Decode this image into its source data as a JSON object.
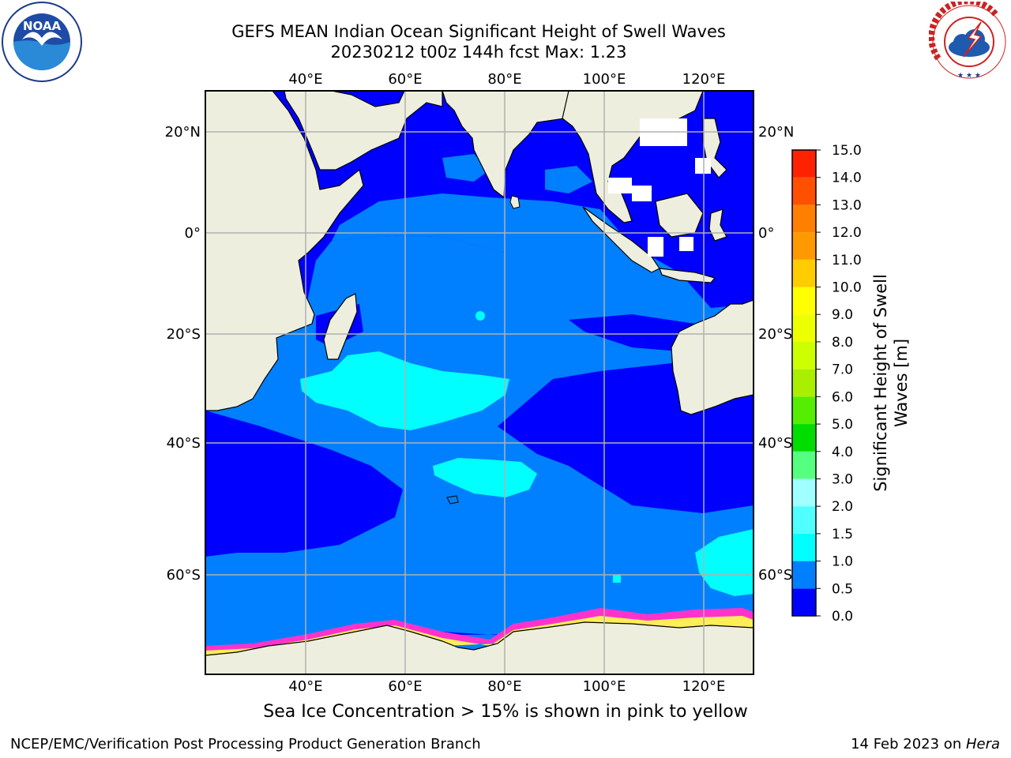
{
  "title": {
    "line1": "GEFS MEAN Indian Ocean Significant Height of Swell Waves",
    "line2": "20230212 t00z 144h fcst   Max: 1.23"
  },
  "map": {
    "lon_labels": [
      "40°E",
      "60°E",
      "80°E",
      "100°E",
      "120°E"
    ],
    "lat_labels": [
      "20°N",
      "0°",
      "20°S",
      "40°S",
      "60°S"
    ],
    "colors": {
      "land": "#eeeede",
      "class_0_0_5": "#0000ff",
      "class_0_5_1_0": "#0080ff",
      "class_1_0_1_5": "#00ffff",
      "sea_ice_pink": "#ff33cc",
      "sea_ice_yellow": "#ffee55",
      "grid": "#b0b0b0"
    }
  },
  "colorbar": {
    "title_line1": "Significant Height of Swell",
    "title_line2": "Waves [m]",
    "ticks": [
      "0.0",
      "0.5",
      "1.0",
      "1.5",
      "2.0",
      "3.0",
      "4.0",
      "5.0",
      "6.0",
      "7.0",
      "8.0",
      "9.0",
      "10.0",
      "11.0",
      "12.0",
      "13.0",
      "14.0",
      "15.0"
    ],
    "colors": [
      "#0000ff",
      "#0080ff",
      "#00ffff",
      "#50ffff",
      "#a0ffff",
      "#55ff80",
      "#00dd00",
      "#55ee00",
      "#aaee00",
      "#ccff00",
      "#eeff00",
      "#ffff00",
      "#ffcc00",
      "#ff9900",
      "#ff8000",
      "#ff5000",
      "#ff2200",
      "#ff0000"
    ]
  },
  "caption": "Sea Ice Concentration > 15% is shown in pink to yellow",
  "footer": {
    "left": "NCEP/EMC/Verification Post Processing Product Generation Branch",
    "right_prefix": "14 Feb 2023 on ",
    "right_host": "Hera"
  },
  "logos": {
    "noaa_text": "NOAA",
    "nws_text": "NATIONAL WEATHER SERVICE",
    "noaa_icon": "noaa-seagull-logo",
    "nws_icon": "nws-storm-logo"
  }
}
